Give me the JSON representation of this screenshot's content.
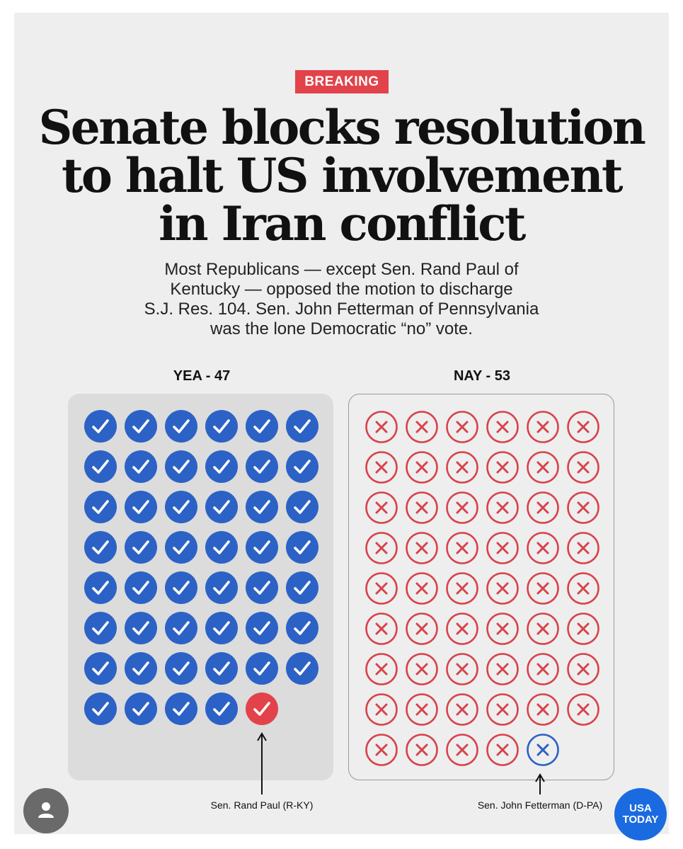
{
  "badge": "BREAKING",
  "headline": [
    "Senate blocks resolution",
    "to halt US involvement",
    "in Iran conflict"
  ],
  "dek": [
    "Most Republicans — except Sen. Rand Paul of",
    "Kentucky — opposed the motion to discharge",
    "S.J. Res. 104. Sen. John Fetterman of Pennsylvania",
    "was the lone Democratic “no” vote."
  ],
  "yea": {
    "label": "YEA - 47",
    "count": 47,
    "highlight_index": 46,
    "highlight_note": "Sen. Rand Paul (R-KY)"
  },
  "nay": {
    "label": "NAY - 53",
    "count": 53,
    "highlight_index": 52,
    "highlight_note": "Sen. John Fetterman (D-PA)"
  },
  "logo": [
    "USA",
    "TODAY"
  ],
  "colors": {
    "yea_mark": "#2c62c6",
    "nay_mark": "#d8434b",
    "rand_paul_mark": "#e2434b",
    "fetterman_mark": "#2c62c6",
    "badge": "#e2434b",
    "logo": "#1b6be0"
  },
  "icons": {
    "yea_mark": "check-circle-icon",
    "nay_mark": "x-circle-icon",
    "profile": "person-icon"
  }
}
